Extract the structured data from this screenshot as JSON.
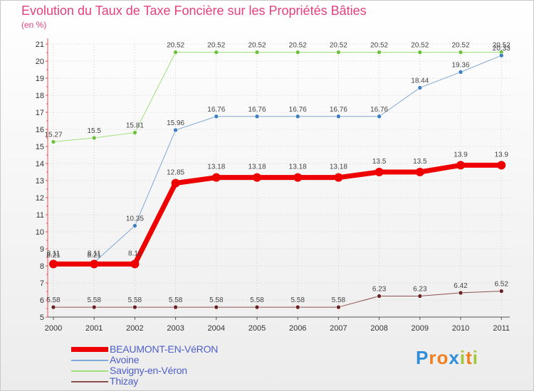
{
  "title": "Evolution du Taux de Taxe Foncière sur les Propriétés Bâties",
  "unit_label": "(en %)",
  "logo": {
    "text": "Proxiti",
    "letters": [
      "P",
      "r",
      "o",
      "x",
      "i",
      "t",
      "i"
    ],
    "colors": [
      "#2e8fd8",
      "#f07f1f",
      "#f07f1f",
      "#2e8fd8",
      "#a3c63a",
      "#f07f1f",
      "#a3c63a"
    ]
  },
  "chart_data": {
    "type": "line",
    "title": "Evolution du Taux de Taxe Foncière sur les Propriétés Bâties",
    "ylabel": "(en %)",
    "x": [
      "2000",
      "2001",
      "2002",
      "2003",
      "2004",
      "2005",
      "2006",
      "2007",
      "2008",
      "2009",
      "2010",
      "2011"
    ],
    "ylim": [
      5,
      21
    ],
    "yticks": [
      "5",
      "6",
      "7",
      "8",
      "9",
      "10",
      "11",
      "12",
      "13",
      "14",
      "15",
      "16",
      "17",
      "18",
      "19",
      "20",
      "21"
    ],
    "legend_position": "bottom-left",
    "series": [
      {
        "name": "BEAUMONT-EN-VéRON",
        "color": "#ee0000",
        "dot": "#ee0000",
        "values": [
          8.11,
          8.11,
          8.11,
          12.85,
          13.18,
          13.18,
          13.18,
          13.18,
          13.5,
          13.5,
          13.9,
          13.9
        ],
        "labels": [
          "8.11",
          "8.11",
          "8.11",
          "12.85",
          "13.18",
          "13.18",
          "13.18",
          "13.18",
          "13.5",
          "13.5",
          "13.9",
          "13.9"
        ]
      },
      {
        "name": "Avoine",
        "color": "#7ea8d6",
        "dot": "#3c7ec0",
        "values": [
          8.21,
          8.21,
          10.35,
          15.96,
          16.76,
          16.76,
          16.76,
          16.76,
          16.76,
          18.44,
          19.36,
          20.33
        ],
        "labels": [
          "8.21",
          "8.21",
          "10.35",
          "15.96",
          "16.76",
          "16.76",
          "16.76",
          "16.76",
          "16.76",
          "18.44",
          "19.36",
          "20.33"
        ]
      },
      {
        "name": "Savigny-en-Véron",
        "color": "#9ee07a",
        "dot": "#6cc23c",
        "values": [
          15.27,
          15.5,
          15.81,
          20.52,
          20.52,
          20.52,
          20.52,
          20.52,
          20.52,
          20.52,
          20.52,
          20.52
        ],
        "labels": [
          "15.27",
          "15.5",
          "15.81",
          "20.52",
          "20.52",
          "20.52",
          "20.52",
          "20.52",
          "20.52",
          "20.52",
          "20.52",
          "20.52"
        ]
      },
      {
        "name": "Thizay",
        "color": "#8a5050",
        "dot": "#6a2222",
        "values": [
          5.58,
          5.58,
          5.58,
          5.58,
          5.58,
          5.58,
          5.58,
          5.58,
          6.23,
          6.23,
          6.42,
          6.52
        ],
        "labels": [
          "5.58",
          "5.58",
          "5.58",
          "5.58",
          "5.58",
          "5.58",
          "5.58",
          "5.58",
          "6.23",
          "6.23",
          "6.42",
          "6.52"
        ]
      }
    ]
  }
}
